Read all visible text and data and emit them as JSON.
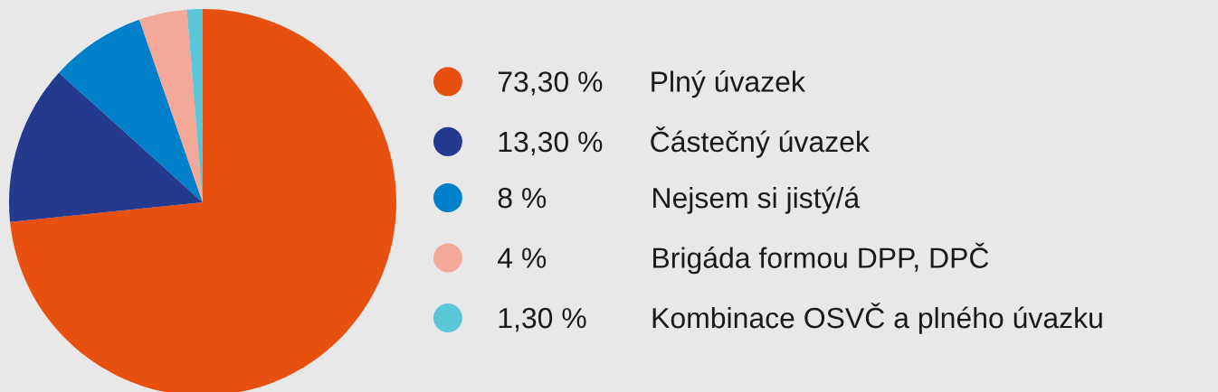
{
  "chart_data": {
    "type": "pie",
    "categories": [
      "Plný úvazek",
      "Částečný úvazek",
      "Nejsem si jistý/á",
      "Brigáda formou DPP, DPČ",
      "Kombinace OSVČ a plného úvazku"
    ],
    "values": [
      73.3,
      13.3,
      8,
      4,
      1.3
    ],
    "value_labels": [
      "73,30 %",
      "13,30 %",
      "8 %",
      "4 %",
      "1,30 %"
    ],
    "colors": [
      "#e8500f",
      "#233a8f",
      "#0080c9",
      "#f4a89a",
      "#5bc5d9"
    ],
    "legend": "right"
  }
}
